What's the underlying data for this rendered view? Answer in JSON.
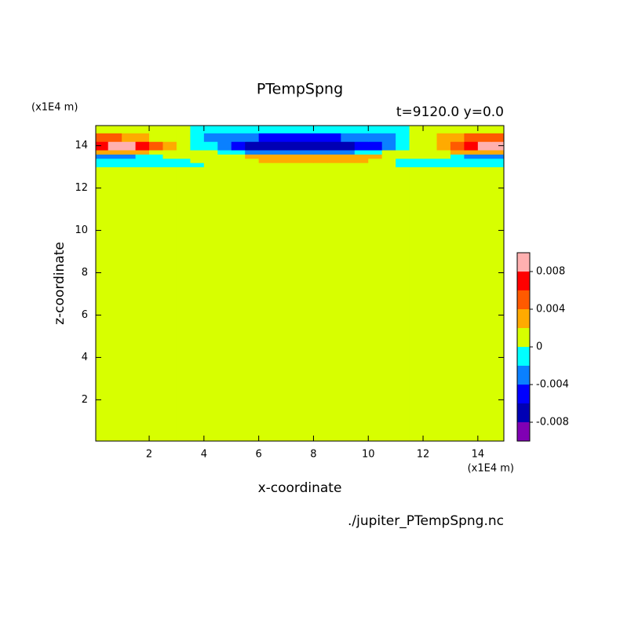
{
  "chart_data": {
    "type": "contour",
    "title": "PTempSpng",
    "subtitle": "t=9120.0 y=0.0",
    "x_label": "x-coordinate",
    "y_label": "z-coordinate",
    "x_unit": "(x1E4 m)",
    "y_unit": "(x1E4 m)",
    "source": "./jupiter_PTempSpng.nc",
    "xlim": [
      0.05,
      14.95
    ],
    "ylim": [
      0.05,
      14.95
    ],
    "xticks": [
      2,
      4,
      6,
      8,
      10,
      12,
      14
    ],
    "yticks": [
      2,
      4,
      6,
      8,
      10,
      12,
      14
    ],
    "x_edges": [
      0.05,
      0.5,
      1,
      1.5,
      2,
      2.5,
      3,
      3.5,
      4,
      4.5,
      5,
      5.5,
      6,
      6.5,
      7,
      7.5,
      8,
      8.5,
      9,
      9.5,
      10,
      10.5,
      11,
      11.5,
      12,
      12.5,
      13,
      13.5,
      14,
      14.5,
      14.95
    ],
    "z_edges": [
      0.05,
      13.0,
      13.2,
      13.4,
      13.6,
      13.8,
      14.2,
      14.6,
      14.95
    ],
    "values": [
      [
        0.001,
        0.001,
        0.001,
        0.001,
        0.001,
        0.001,
        0.001,
        0.001,
        0.001,
        0.001,
        0.001,
        0.001,
        0.001,
        0.001,
        0.001,
        0.001,
        0.001,
        0.001,
        0.001,
        0.001,
        0.001,
        0.001,
        0.001,
        0.001,
        0.001,
        0.001,
        0.001,
        0.001,
        0.001,
        0.001
      ],
      [
        -0.001,
        -0.001,
        -0.001,
        -0.001,
        -0.001,
        -0.001,
        -0.001,
        -0.001,
        0.001,
        0.001,
        0.001,
        0.001,
        0.001,
        0.001,
        0.001,
        0.001,
        0.001,
        0.001,
        0.001,
        0.001,
        0.001,
        0.001,
        -0.001,
        -0.001,
        -0.001,
        -0.001,
        -0.001,
        -0.001,
        -0.001,
        -0.001
      ],
      [
        -0.001,
        -0.001,
        -0.001,
        -0.001,
        -0.001,
        -0.001,
        -0.001,
        0.001,
        0.001,
        0.001,
        0.001,
        0.001,
        0.003,
        0.003,
        0.003,
        0.003,
        0.003,
        0.003,
        0.003,
        0.003,
        0.001,
        0.001,
        -0.001,
        -0.001,
        -0.001,
        -0.001,
        -0.001,
        -0.001,
        -0.001,
        -0.001
      ],
      [
        -0.003,
        -0.003,
        -0.003,
        -0.001,
        -0.001,
        0.001,
        0.001,
        0.001,
        0.001,
        0.001,
        0.001,
        0.003,
        0.003,
        0.003,
        0.003,
        0.003,
        0.003,
        0.003,
        0.003,
        0.003,
        0.003,
        0.001,
        0.001,
        0.001,
        0.001,
        0.001,
        -0.001,
        -0.003,
        -0.003,
        -0.003
      ],
      [
        0.003,
        0.003,
        0.003,
        0.003,
        0.001,
        0.001,
        0.001,
        0.001,
        0.001,
        -0.001,
        -0.001,
        -0.003,
        -0.003,
        -0.003,
        -0.003,
        -0.003,
        -0.003,
        -0.003,
        -0.003,
        -0.001,
        -0.001,
        0.001,
        0.001,
        0.001,
        0.001,
        0.001,
        0.003,
        0.003,
        0.003,
        0.003
      ],
      [
        0.007,
        0.009,
        0.009,
        0.007,
        0.005,
        0.003,
        0.001,
        -0.001,
        -0.001,
        -0.003,
        -0.005,
        -0.007,
        -0.007,
        -0.007,
        -0.007,
        -0.007,
        -0.007,
        -0.007,
        -0.007,
        -0.005,
        -0.005,
        -0.003,
        -0.001,
        0.001,
        0.001,
        0.003,
        0.005,
        0.007,
        0.009,
        0.009
      ],
      [
        0.005,
        0.005,
        0.003,
        0.003,
        0.001,
        0.001,
        0.001,
        -0.001,
        -0.003,
        -0.003,
        -0.003,
        -0.003,
        -0.005,
        -0.005,
        -0.005,
        -0.005,
        -0.005,
        -0.005,
        -0.003,
        -0.003,
        -0.003,
        -0.003,
        -0.001,
        0.001,
        0.001,
        0.003,
        0.003,
        0.005,
        0.005,
        0.005
      ],
      [
        0.001,
        0.001,
        0.001,
        0.001,
        0.001,
        0.001,
        0.001,
        -0.001,
        -0.001,
        -0.001,
        -0.001,
        -0.001,
        -0.001,
        -0.001,
        -0.001,
        -0.001,
        -0.001,
        -0.001,
        -0.001,
        -0.001,
        -0.001,
        -0.001,
        -0.001,
        0.001,
        0.001,
        0.001,
        0.001,
        0.001,
        0.001,
        0.001
      ]
    ],
    "levels": [
      -0.01,
      -0.008,
      -0.006,
      -0.004,
      -0.002,
      0,
      0.002,
      0.004,
      0.006,
      0.008,
      0.01
    ],
    "colors": [
      "#8000b4",
      "#0000b4",
      "#0000ff",
      "#0a80ff",
      "#00ffff",
      "#d7ff00",
      "#ffaa00",
      "#ff5a00",
      "#ff0000",
      "#ffb0b0"
    ],
    "colorbar_ticks": [
      -0.008,
      -0.004,
      0,
      0.004,
      0.008
    ]
  }
}
